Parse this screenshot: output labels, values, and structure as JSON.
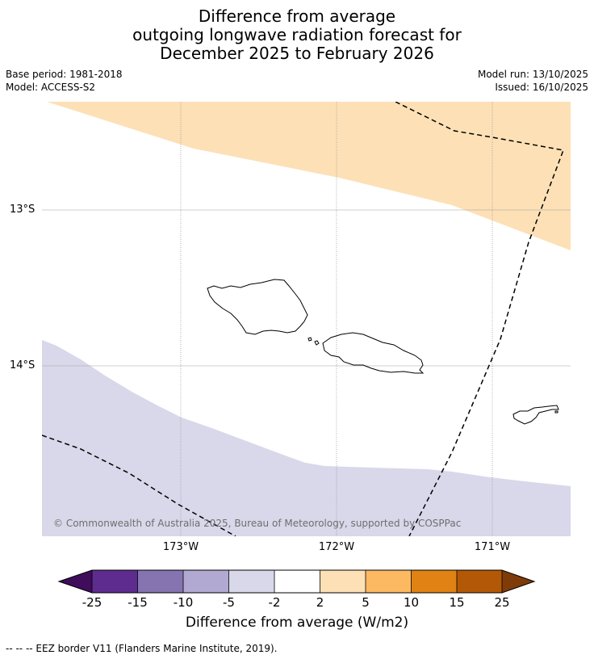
{
  "title": {
    "line1": "Difference from average",
    "line2": "outgoing longwave radiation forecast for",
    "line3": "December 2025 to February 2026"
  },
  "meta": {
    "base_period": "Base period: 1981-2018",
    "model": "Model: ACCESS-S2",
    "model_run": "Model run: 13/10/2025",
    "issued": "Issued: 16/10/2025"
  },
  "map": {
    "lat_labels": [
      "13°S",
      "14°S"
    ],
    "lon_labels": [
      "173°W",
      "172°W",
      "171°W"
    ],
    "copyright": "© Commonwealth of Australia 2025, Bureau of Meteorology, supported by COSPPac",
    "colors": {
      "positive_anomaly": "#fde0b6",
      "negative_anomaly": "#d8d8ea",
      "coast": "#000000"
    }
  },
  "colorbar": {
    "ticks": [
      "-25",
      "-15",
      "-10",
      "-5",
      "-2",
      "2",
      "5",
      "10",
      "15",
      "25"
    ],
    "colors": [
      "#3f0d5c",
      "#5e2b8f",
      "#8574b0",
      "#b2a9d2",
      "#d8d8ea",
      "#ffffff",
      "#fde0b6",
      "#fcb962",
      "#e08214",
      "#b35806",
      "#7f3b08"
    ],
    "label": "Difference from average (W/m2)"
  },
  "footer": "--  --  -- EEZ border V11 (Flanders Marine Institute, 2019)."
}
